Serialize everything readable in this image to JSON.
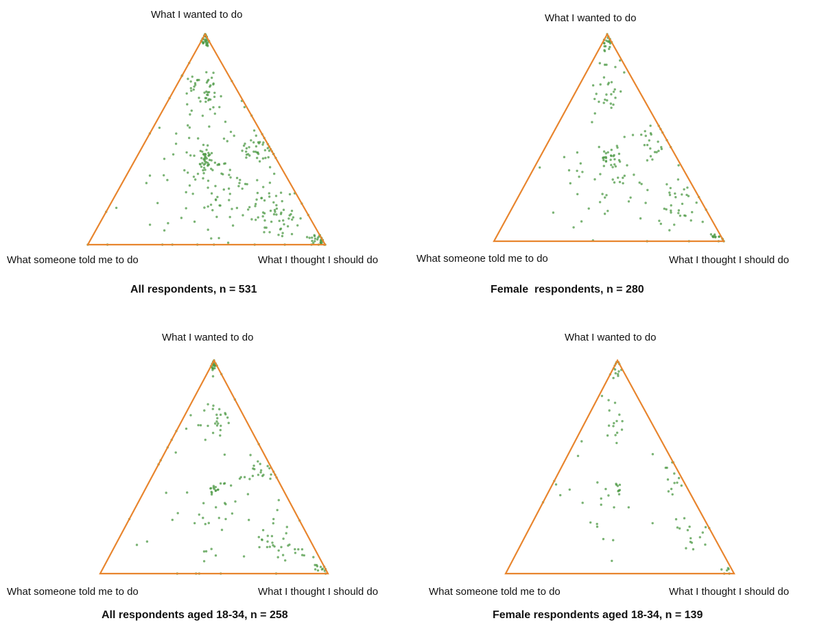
{
  "chart_data": [
    {
      "type": "scatter",
      "subtype": "ternary",
      "title": "All respondents, n = 531",
      "vertices": {
        "top": "What I wanted to do",
        "left": "What someone told me to do",
        "right": "What I thought I should do"
      },
      "n": 531,
      "point_color": "#4e9a45",
      "triangle_color": "#e8852e",
      "clusters": [
        {
          "name": "wanted-vertex",
          "wanted": 0.98,
          "told": 0.01,
          "should": 0.01,
          "spread": 0.015,
          "count": 40
        },
        {
          "name": "wanted-should-edge-upper",
          "wanted": 0.72,
          "told": 0.14,
          "should": 0.14,
          "spread": 0.05,
          "count": 45
        },
        {
          "name": "center",
          "wanted": 0.4,
          "told": 0.3,
          "should": 0.3,
          "spread": 0.03,
          "count": 35
        },
        {
          "name": "right-edge-mid",
          "wanted": 0.45,
          "told": 0.05,
          "should": 0.5,
          "spread": 0.05,
          "count": 40
        },
        {
          "name": "should-vertex",
          "wanted": 0.02,
          "told": 0.02,
          "should": 0.96,
          "spread": 0.02,
          "count": 30
        },
        {
          "name": "lower-right-band",
          "wanted": 0.15,
          "told": 0.15,
          "should": 0.7,
          "spread": 0.07,
          "count": 60
        },
        {
          "name": "scattered",
          "wanted": 0.33,
          "told": 0.33,
          "should": 0.33,
          "spread": 0.22,
          "count": 120
        }
      ]
    },
    {
      "type": "scatter",
      "subtype": "ternary",
      "title": "Female  respondents, n = 280",
      "vertices": {
        "top": "What I wanted to do",
        "left": "What someone told me to do",
        "right": "What I thought I should do"
      },
      "n": 280,
      "point_color": "#4e9a45",
      "triangle_color": "#e8852e",
      "clusters": [
        {
          "name": "wanted-vertex",
          "wanted": 0.96,
          "told": 0.02,
          "should": 0.02,
          "spread": 0.02,
          "count": 22
        },
        {
          "name": "wanted-should-edge-upper",
          "wanted": 0.72,
          "told": 0.14,
          "should": 0.14,
          "spread": 0.05,
          "count": 25
        },
        {
          "name": "center",
          "wanted": 0.4,
          "told": 0.3,
          "should": 0.3,
          "spread": 0.03,
          "count": 22
        },
        {
          "name": "right-edge-mid",
          "wanted": 0.48,
          "told": 0.05,
          "should": 0.47,
          "spread": 0.05,
          "count": 22
        },
        {
          "name": "should-vertex",
          "wanted": 0.02,
          "told": 0.02,
          "should": 0.96,
          "spread": 0.02,
          "count": 15
        },
        {
          "name": "lower-right-band",
          "wanted": 0.18,
          "told": 0.1,
          "should": 0.72,
          "spread": 0.06,
          "count": 30
        },
        {
          "name": "scattered",
          "wanted": 0.33,
          "told": 0.33,
          "should": 0.33,
          "spread": 0.22,
          "count": 60
        }
      ]
    },
    {
      "type": "scatter",
      "subtype": "ternary",
      "title": "All respondents aged 18-34, n = 258",
      "vertices": {
        "top": "What I wanted to do",
        "left": "What someone told me to do",
        "right": "What I thought I should do"
      },
      "n": 258,
      "point_color": "#4e9a45",
      "triangle_color": "#e8852e",
      "clusters": [
        {
          "name": "wanted-vertex",
          "wanted": 0.97,
          "told": 0.015,
          "should": 0.015,
          "spread": 0.015,
          "count": 25
        },
        {
          "name": "wanted-should-edge-upper",
          "wanted": 0.72,
          "told": 0.14,
          "should": 0.14,
          "spread": 0.05,
          "count": 25
        },
        {
          "name": "center",
          "wanted": 0.4,
          "told": 0.3,
          "should": 0.3,
          "spread": 0.02,
          "count": 15
        },
        {
          "name": "right-edge-mid",
          "wanted": 0.48,
          "told": 0.05,
          "should": 0.47,
          "spread": 0.05,
          "count": 20
        },
        {
          "name": "should-vertex",
          "wanted": 0.02,
          "told": 0.02,
          "should": 0.96,
          "spread": 0.02,
          "count": 12
        },
        {
          "name": "lower-right-band",
          "wanted": 0.16,
          "told": 0.14,
          "should": 0.7,
          "spread": 0.07,
          "count": 30
        },
        {
          "name": "scattered",
          "wanted": 0.33,
          "told": 0.33,
          "should": 0.33,
          "spread": 0.22,
          "count": 55
        }
      ]
    },
    {
      "type": "scatter",
      "subtype": "ternary",
      "title": "Female respondents aged 18-34, n = 139",
      "vertices": {
        "top": "What I wanted to do",
        "left": "What someone told me to do",
        "right": "What I thought I should do"
      },
      "n": 139,
      "point_color": "#4e9a45",
      "triangle_color": "#e8852e",
      "clusters": [
        {
          "name": "wanted-vertex",
          "wanted": 0.96,
          "told": 0.02,
          "should": 0.02,
          "spread": 0.02,
          "count": 14
        },
        {
          "name": "wanted-should-edge-upper",
          "wanted": 0.72,
          "told": 0.14,
          "should": 0.14,
          "spread": 0.05,
          "count": 14
        },
        {
          "name": "center",
          "wanted": 0.4,
          "told": 0.3,
          "should": 0.3,
          "spread": 0.02,
          "count": 8
        },
        {
          "name": "right-edge-mid",
          "wanted": 0.46,
          "told": 0.05,
          "should": 0.49,
          "spread": 0.05,
          "count": 12
        },
        {
          "name": "should-vertex",
          "wanted": 0.02,
          "told": 0.02,
          "should": 0.96,
          "spread": 0.02,
          "count": 6
        },
        {
          "name": "lower-right-band",
          "wanted": 0.18,
          "told": 0.1,
          "should": 0.72,
          "spread": 0.06,
          "count": 14
        },
        {
          "name": "scattered",
          "wanted": 0.33,
          "told": 0.33,
          "should": 0.33,
          "spread": 0.22,
          "count": 28
        }
      ]
    }
  ]
}
